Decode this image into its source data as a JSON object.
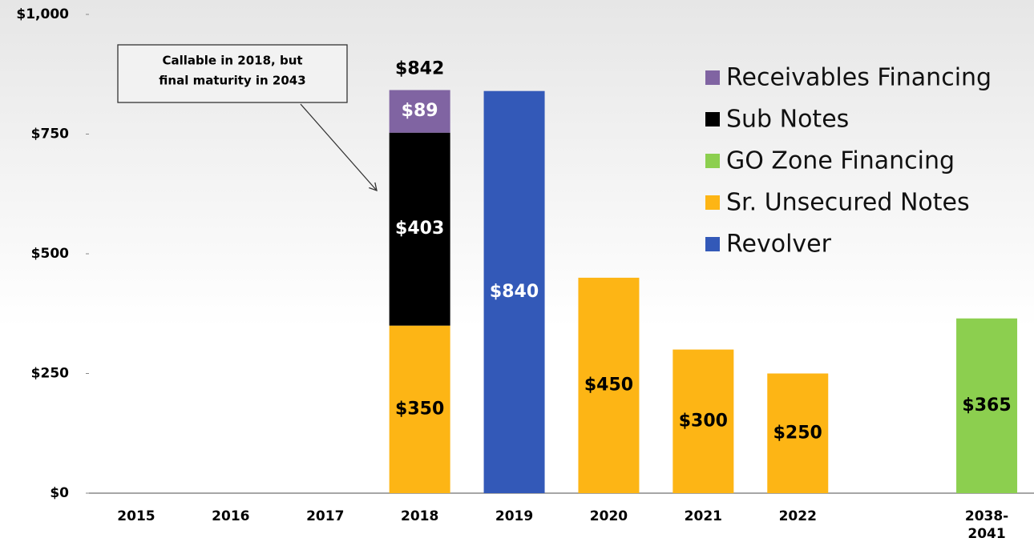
{
  "chart_data": {
    "type": "stacked_bar",
    "categories": [
      "2015",
      "2016",
      "2017",
      "2018",
      "2019",
      "2020",
      "2021",
      "2022",
      null,
      "2038-2041"
    ],
    "series": [
      {
        "name": "Revolver",
        "color": "#3359b8",
        "label_color": "#ffffff",
        "values": [
          null,
          null,
          null,
          null,
          840,
          null,
          null,
          null,
          null,
          null
        ],
        "value_labels": [
          null,
          null,
          null,
          null,
          "$840",
          null,
          null,
          null,
          null,
          null
        ]
      },
      {
        "name": "Sr. Unsecured Notes",
        "color": "#fdb515",
        "label_color": "#000000",
        "values": [
          null,
          null,
          null,
          350,
          null,
          450,
          300,
          250,
          null,
          null
        ],
        "value_labels": [
          null,
          null,
          null,
          "$350",
          null,
          "$450",
          "$300",
          "$250",
          null,
          null
        ]
      },
      {
        "name": "GO Zone Financing",
        "color": "#8ccf4f",
        "label_color": "#000000",
        "values": [
          null,
          null,
          null,
          null,
          null,
          null,
          null,
          null,
          null,
          365
        ],
        "value_labels": [
          null,
          null,
          null,
          null,
          null,
          null,
          null,
          null,
          null,
          "$365"
        ]
      },
      {
        "name": "Sub Notes",
        "color": "#000000",
        "label_color": "#ffffff",
        "values": [
          null,
          null,
          null,
          403,
          null,
          null,
          null,
          null,
          null,
          null
        ],
        "value_labels": [
          null,
          null,
          null,
          "$403",
          null,
          null,
          null,
          null,
          null,
          null
        ]
      },
      {
        "name": "Receivables Financing",
        "color": "#8064a2",
        "label_color": "#ffffff",
        "values": [
          null,
          null,
          null,
          89,
          null,
          null,
          null,
          null,
          null,
          null
        ],
        "value_labels": [
          null,
          null,
          null,
          "$89",
          null,
          null,
          null,
          null,
          null,
          null
        ]
      }
    ],
    "totals": [
      null,
      null,
      null,
      842,
      null,
      null,
      null,
      null,
      null,
      null
    ],
    "total_labels": [
      null,
      null,
      null,
      "$842",
      null,
      null,
      null,
      null,
      null,
      null
    ],
    "annotation": [
      "Callable in 2018, but",
      "final maturity in 2043"
    ],
    "ylim": [
      0,
      1000
    ],
    "yticks": [
      {
        "value": 0,
        "label": "$0"
      },
      {
        "value": 250,
        "label": "$250"
      },
      {
        "value": 500,
        "label": "$500"
      },
      {
        "value": 750,
        "label": "$750"
      },
      {
        "value": 1000,
        "label": "$1,000"
      }
    ],
    "legend": "upper right",
    "grid": false
  }
}
